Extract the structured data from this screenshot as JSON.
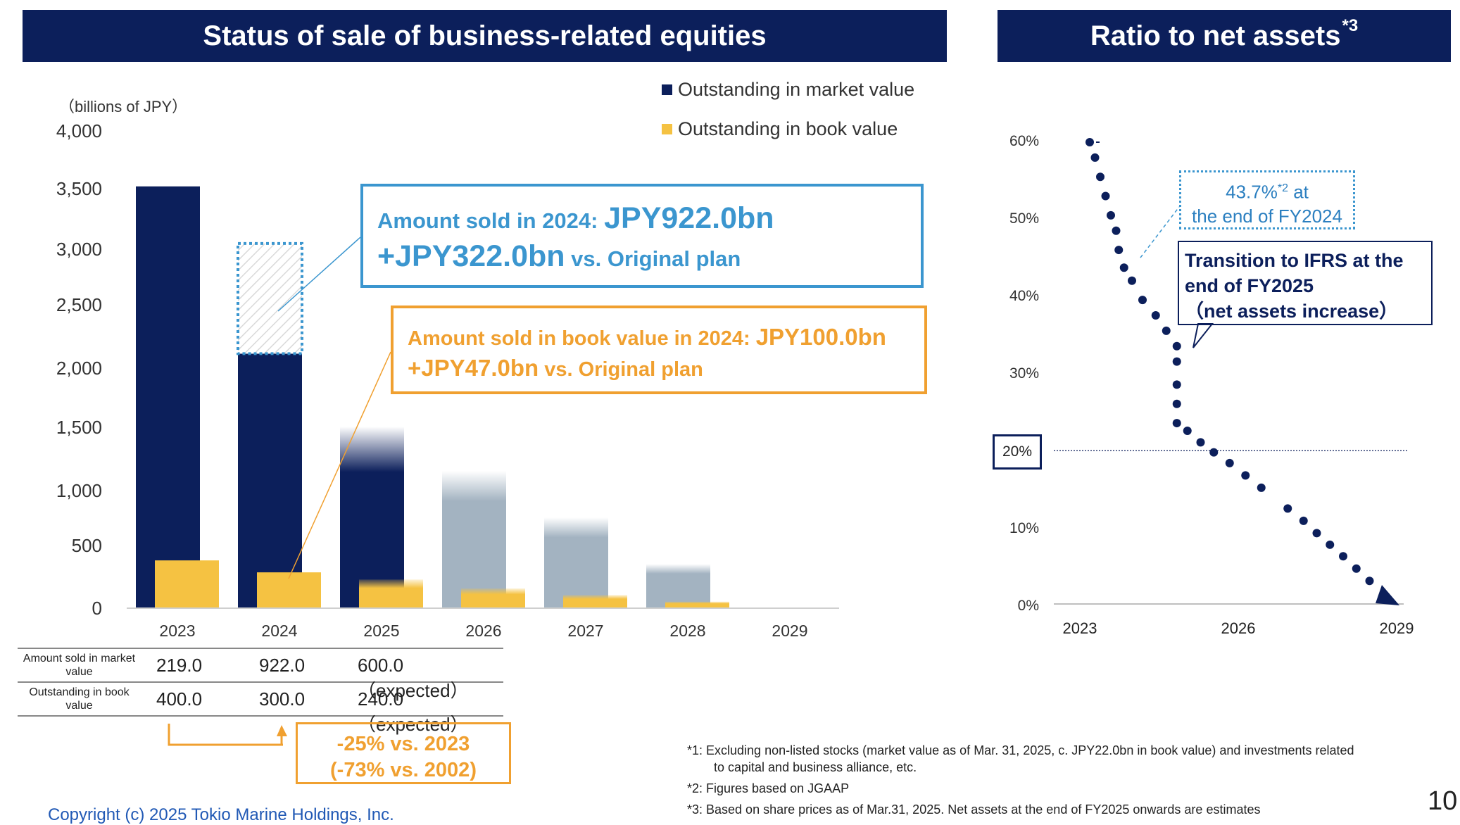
{
  "left_header": "Status of sale of business-related equities",
  "right_header": {
    "text": "Ratio to net assets",
    "sup": "*3"
  },
  "unit_label": "（billions of JPY）",
  "legend": [
    {
      "label": "Outstanding in market value",
      "color": "#0c1f5b"
    },
    {
      "label": "Outstanding in book value",
      "color": "#f5c242"
    }
  ],
  "colors": {
    "navy": "#0c1f5b",
    "gold": "#f5c242",
    "gray": "#a3b3c1",
    "blue": "#3b96cf",
    "orange": "#f0a030"
  },
  "chart_data": [
    {
      "type": "bar",
      "title": "Status of sale of business-related equities",
      "ylabel": "billions of JPY",
      "ylim": [
        0,
        4000
      ],
      "yticks": [
        "4,000",
        "3,500",
        "3,000",
        "2,500",
        "2,000",
        "1,500",
        "1,000",
        "500",
        "0"
      ],
      "categories": [
        "2023",
        "2024",
        "2025",
        "2026",
        "2027",
        "2028",
        "2029"
      ],
      "series": [
        {
          "name": "Outstanding in market value",
          "values": [
            3530,
            2130,
            1520,
            1150,
            760,
            370,
            0
          ],
          "note": "2025 onwards faded / estimates"
        },
        {
          "name": "Outstanding in book value",
          "values": [
            400,
            300,
            240,
            165,
            110,
            55,
            0
          ]
        }
      ],
      "sold_2024_market": 922
    },
    {
      "type": "scatter",
      "title": "Ratio to net assets",
      "ylim": [
        0,
        60
      ],
      "yticks": [
        "60%",
        "50%",
        "40%",
        "30%",
        "20%",
        "10%",
        "0%"
      ],
      "xticks": [
        "2023",
        "2026",
        "2029"
      ],
      "reference_line": 20,
      "points": [
        [
          2023.2,
          60
        ],
        [
          2023.3,
          58
        ],
        [
          2023.4,
          55.5
        ],
        [
          2023.5,
          53
        ],
        [
          2023.6,
          50.5
        ],
        [
          2023.7,
          48.5
        ],
        [
          2023.75,
          46
        ],
        [
          2023.85,
          43.7
        ],
        [
          2024.0,
          42
        ],
        [
          2024.2,
          39.5
        ],
        [
          2024.45,
          37.5
        ],
        [
          2024.65,
          35.5
        ],
        [
          2024.85,
          33.5
        ],
        [
          2024.85,
          31.5
        ],
        [
          2024.85,
          28.5
        ],
        [
          2024.85,
          26
        ],
        [
          2024.85,
          23.5
        ],
        [
          2025.05,
          22.5
        ],
        [
          2025.3,
          21
        ],
        [
          2025.55,
          19.7
        ],
        [
          2025.85,
          18.3
        ],
        [
          2026.15,
          16.7
        ],
        [
          2026.45,
          15.1
        ],
        [
          2026.95,
          12.4
        ],
        [
          2027.25,
          10.8
        ],
        [
          2027.5,
          9.2
        ],
        [
          2027.75,
          7.7
        ],
        [
          2028.0,
          6.2
        ],
        [
          2028.25,
          4.6
        ],
        [
          2028.5,
          3
        ]
      ]
    }
  ],
  "callout_sold": {
    "line1_prefix": "Amount sold in 2024: ",
    "line1_value": "JPY922.0bn",
    "line2_value": "+JPY322.0bn",
    "line2_suffix": " vs. Original plan"
  },
  "callout_book": {
    "line1_prefix": "Amount sold in book value in 2024: ",
    "line1_value": "JPY100.0bn",
    "line2_value": "+JPY47.0bn",
    "line2_suffix": " vs. Original plan"
  },
  "table": {
    "rows": [
      {
        "label": "Amount sold in market value",
        "v2023": "219.0",
        "v2024": "922.0",
        "v2025": "600.0（expected）"
      },
      {
        "label": "Outstanding in book value",
        "v2023": "400.0",
        "v2024": "300.0",
        "v2025": "240.0（expected）"
      }
    ]
  },
  "reduction": {
    "line1": "-25% vs. 2023",
    "line2": "(-73% vs. 2002)"
  },
  "value_callout": {
    "value": "43.7%",
    "sup": "*2",
    "suffix": " at",
    "line2": "the end of FY2024"
  },
  "ifrs_callout": {
    "line1": "Transition to IFRS at the",
    "line2": "end of FY2025",
    "line3": "（net assets increase）"
  },
  "footnotes": [
    "*1: Excluding non-listed stocks (market value as of Mar. 31, 2025, c. JPY22.0bn in book value) and investments related",
    "to capital and business alliance, etc.",
    "*2: Figures based on JGAAP",
    "*3: Based on share prices as of Mar.31, 2025. Net assets at the end of FY2025 onwards are estimates"
  ],
  "copyright": "Copyright (c) 2025 Tokio Marine Holdings, Inc.",
  "page_number": "10"
}
